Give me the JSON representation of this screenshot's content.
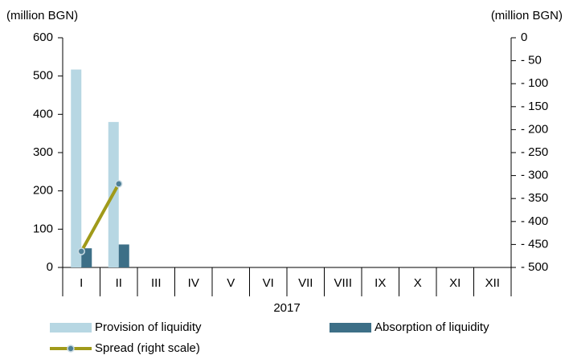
{
  "chart_data": {
    "type": "bar",
    "y_label": "(million BGN)",
    "y2_label": "(million BGN)",
    "x_label": "2017",
    "categories": [
      "I",
      "II",
      "III",
      "IV",
      "V",
      "VI",
      "VII",
      "VIII",
      "IX",
      "X",
      "XI",
      "XII"
    ],
    "series": [
      {
        "name": "Provision of liquidity",
        "color": "#b7d7e3",
        "values": [
          517,
          380,
          null,
          null,
          null,
          null,
          null,
          null,
          null,
          null,
          null,
          null
        ]
      },
      {
        "name": "Absorption of liquidity",
        "color": "#3d6f87",
        "values": [
          50,
          60,
          null,
          null,
          null,
          null,
          null,
          null,
          null,
          null,
          null,
          null
        ]
      },
      {
        "name": "Spread (right scale)",
        "type": "line",
        "axis": "y2",
        "color": "#a09a1a",
        "marker_color": "#4f7f96",
        "values": [
          -465,
          -318,
          null,
          null,
          null,
          null,
          null,
          null,
          null,
          null,
          null,
          null
        ]
      }
    ],
    "ylim": [
      0,
      600
    ],
    "yticks": [
      0,
      100,
      200,
      300,
      400,
      500,
      600
    ],
    "y2lim": [
      -500,
      0
    ],
    "y2ticks": [
      {
        "value": -500,
        "label": "- 500"
      },
      {
        "value": -450,
        "label": "- 450"
      },
      {
        "value": -400,
        "label": "- 400"
      },
      {
        "value": -350,
        "label": "- 350"
      },
      {
        "value": -300,
        "label": "- 300"
      },
      {
        "value": -250,
        "label": "- 250"
      },
      {
        "value": -200,
        "label": "- 200"
      },
      {
        "value": -150,
        "label": "- 150"
      },
      {
        "value": -100,
        "label": "- 100"
      },
      {
        "value": -50,
        "label": "- 50"
      },
      0
    ]
  }
}
